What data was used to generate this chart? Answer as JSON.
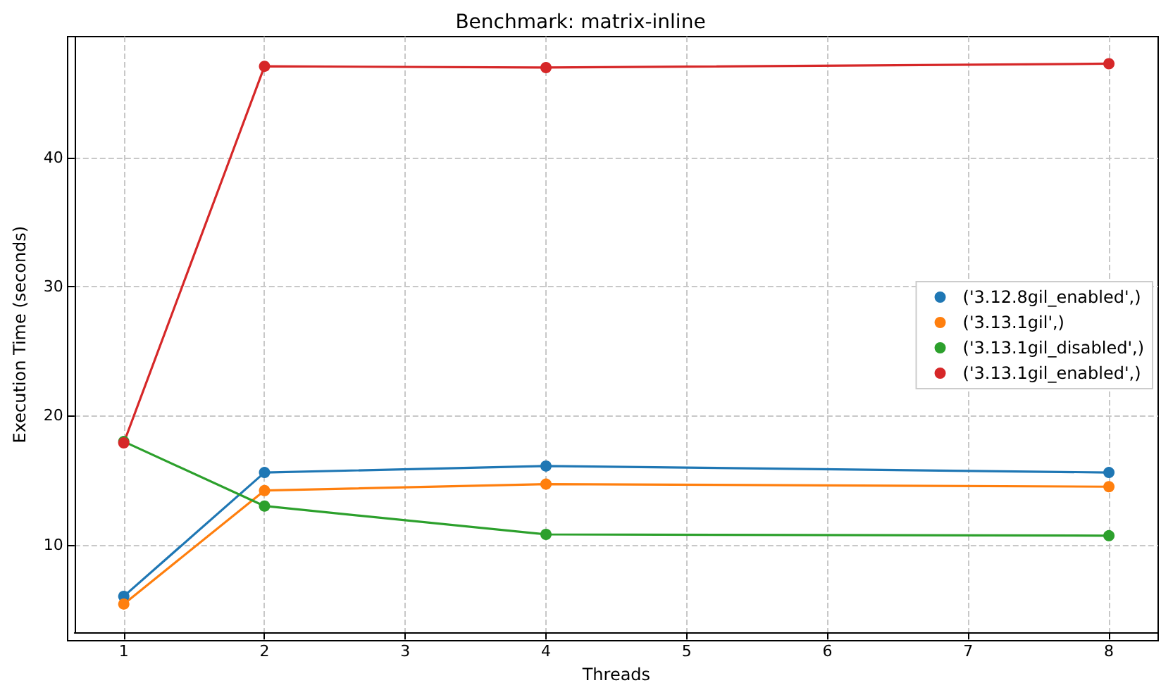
{
  "chart_data": {
    "type": "line",
    "title": "Benchmark: matrix-inline",
    "xlabel": "Threads",
    "ylabel": "Execution Time (seconds)",
    "x": [
      1,
      2,
      4,
      8
    ],
    "series": [
      {
        "name": "('3.12.8gil_enabled',)",
        "color": "#1f77b4",
        "values": [
          6.0,
          15.6,
          16.1,
          15.6
        ]
      },
      {
        "name": "('3.13.1gil',)",
        "color": "#ff7f0e",
        "values": [
          5.4,
          14.2,
          14.7,
          14.5
        ]
      },
      {
        "name": "('3.13.1gil_disabled',)",
        "color": "#2ca02c",
        "values": [
          18.0,
          13.0,
          10.8,
          10.7
        ]
      },
      {
        "name": "('3.13.1gil_enabled',)",
        "color": "#d62728",
        "values": [
          17.9,
          47.1,
          47.0,
          47.3
        ]
      }
    ],
    "xlim": [
      0.65,
      8.35
    ],
    "ylim": [
      3.2,
      49.4
    ],
    "xticks": [
      1,
      2,
      3,
      4,
      5,
      6,
      7,
      8
    ],
    "yticks": [
      10,
      20,
      30,
      40
    ],
    "grid": true,
    "legend": "right",
    "marker": "circle",
    "line_style": "solid"
  }
}
